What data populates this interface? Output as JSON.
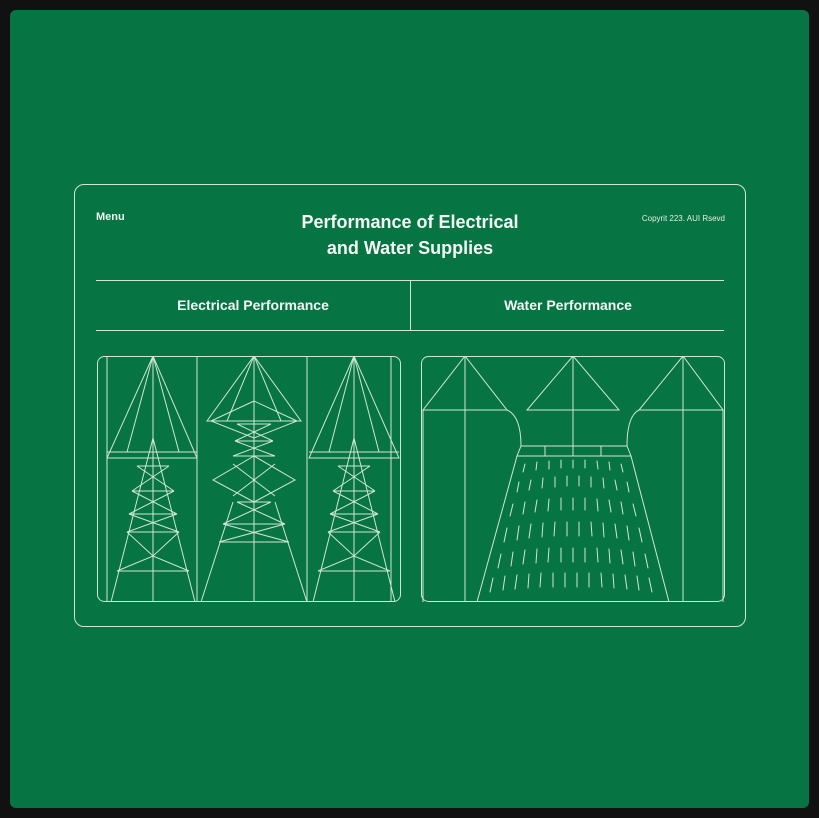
{
  "header": {
    "menu_label": "Menu",
    "title_line1": "Performance of Electrical",
    "title_line2": "and Water Supplies",
    "copyright": "Copyrit 223. AUI Rsevd"
  },
  "tabs": [
    {
      "label": "Electrical Performance",
      "icon": "power-tower-icon"
    },
    {
      "label": "Water Performance",
      "icon": "water-spray-icon"
    }
  ],
  "colors": {
    "background": "#077443",
    "frame": "#111111",
    "line": "#cfe6d5",
    "text": "#f3f9f4"
  }
}
